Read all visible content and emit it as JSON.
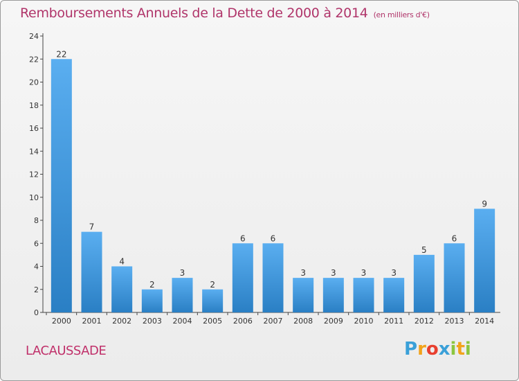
{
  "title": "Remboursements Annuels de la Dette de 2000 à 2014",
  "subtitle": "(en milliers d'€)",
  "commune": "LACAUSSADE",
  "logo": {
    "letters": [
      "P",
      "r",
      "o",
      "x",
      "i",
      "t",
      "i"
    ],
    "colors": [
      "#3aa0d8",
      "#f2a31b",
      "#e8402f",
      "#3aa0d8",
      "#8cc63f",
      "#f2a31b",
      "#8cc63f"
    ]
  },
  "colors": {
    "bar_light": "#5aaef0",
    "bar_dark": "#2a7fc4",
    "title": "#b0356a"
  },
  "chart_data": {
    "type": "bar",
    "categories": [
      "2000",
      "2001",
      "2002",
      "2003",
      "2004",
      "2005",
      "2006",
      "2007",
      "2008",
      "2009",
      "2010",
      "2011",
      "2012",
      "2013",
      "2014"
    ],
    "values": [
      22,
      7,
      4,
      2,
      3,
      2,
      6,
      6,
      3,
      3,
      3,
      3,
      5,
      6,
      9
    ],
    "yticks": [
      0,
      2,
      4,
      6,
      8,
      10,
      12,
      14,
      16,
      18,
      20,
      22,
      24
    ],
    "ylim": [
      0,
      24
    ],
    "xlabel": "",
    "ylabel": "",
    "grid": false,
    "legend": "none"
  }
}
